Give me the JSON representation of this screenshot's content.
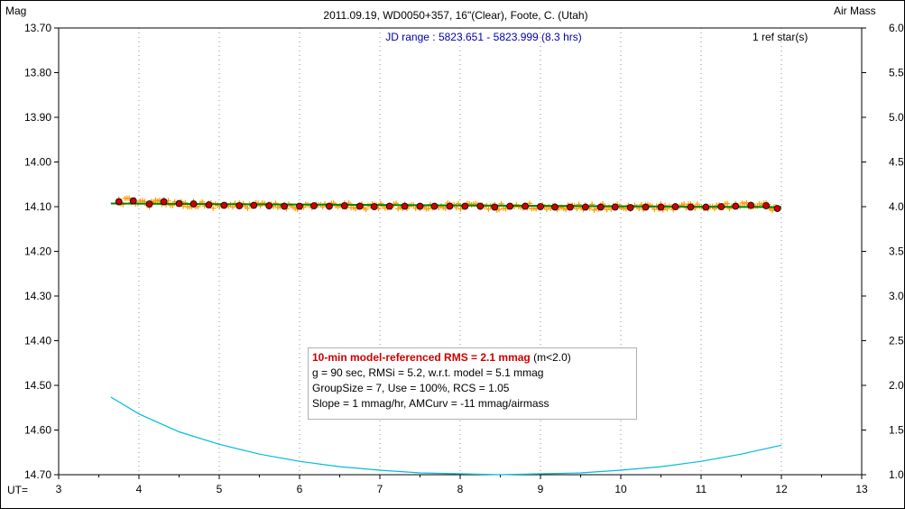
{
  "chart_data": {
    "type": "scatter",
    "title": "2011.09.19, WD0050+357, 16\"(Clear), Foote, C. (Utah)",
    "subtitle": "JD range : 5823.651 - 5823.999 (8.3 hrs)",
    "ref_stars": "1 ref star(s)",
    "ylabel": "Mag",
    "y2label": "Air Mass",
    "xlabel": "UT=",
    "xlim": [
      3,
      13
    ],
    "ylim": [
      14.7,
      13.7
    ],
    "y2lim": [
      1.0,
      6.0
    ],
    "y_inverted": true,
    "grid": false,
    "x_ticks": [
      "3",
      "4",
      "5",
      "6",
      "7",
      "8",
      "9",
      "10",
      "11",
      "12",
      "13"
    ],
    "y_ticks": [
      "13.70",
      "13.80",
      "13.90",
      "14.00",
      "14.10",
      "14.20",
      "14.30",
      "14.40",
      "14.50",
      "14.60",
      "14.70"
    ],
    "y2_ticks": [
      "6.0",
      "5.5",
      "5.0",
      "4.5",
      "4.0",
      "3.5",
      "3.0",
      "2.5",
      "2.0",
      "1.5",
      "1.0"
    ],
    "series": [
      {
        "kind": "binned",
        "color": "#cc0000",
        "x": [
          3.75,
          3.93,
          4.13,
          4.31,
          4.5,
          4.68,
          4.87,
          5.06,
          5.25,
          5.43,
          5.62,
          5.81,
          6.0,
          6.18,
          6.37,
          6.56,
          6.75,
          6.93,
          7.12,
          7.31,
          7.5,
          7.68,
          7.87,
          8.06,
          8.25,
          8.43,
          8.62,
          8.81,
          9.0,
          9.18,
          9.37,
          9.56,
          9.75,
          9.93,
          10.12,
          10.31,
          10.5,
          10.68,
          10.87,
          11.06,
          11.25,
          11.43,
          11.62,
          11.81,
          11.95
        ],
        "y": [
          14.089,
          14.087,
          14.094,
          14.089,
          14.093,
          14.094,
          14.096,
          14.097,
          14.098,
          14.097,
          14.098,
          14.099,
          14.099,
          14.098,
          14.099,
          14.098,
          14.099,
          14.1,
          14.099,
          14.099,
          14.099,
          14.099,
          14.099,
          14.099,
          14.099,
          14.101,
          14.099,
          14.099,
          14.1,
          14.101,
          14.101,
          14.101,
          14.101,
          14.101,
          14.102,
          14.101,
          14.101,
          14.1,
          14.101,
          14.101,
          14.1,
          14.099,
          14.097,
          14.098,
          14.104
        ]
      },
      {
        "kind": "model",
        "color": "#008800",
        "x": [
          3.65,
          12.0
        ],
        "y": [
          14.093,
          14.101
        ]
      },
      {
        "kind": "airmass",
        "axis": "right",
        "color": "#00bbdd",
        "x": [
          3.65,
          4.0,
          4.5,
          5.0,
          5.5,
          6.0,
          6.5,
          7.0,
          7.5,
          8.0,
          8.5,
          9.0,
          9.5,
          10.0,
          10.5,
          11.0,
          11.5,
          12.0
        ],
        "y": [
          1.87,
          1.68,
          1.48,
          1.34,
          1.23,
          1.15,
          1.09,
          1.05,
          1.02,
          1.01,
          1.0,
          1.01,
          1.02,
          1.05,
          1.09,
          1.15,
          1.23,
          1.33
        ]
      }
    ],
    "annotations": {
      "rms_line": "10-min model-referenced RMS = 2.1 mmag",
      "rms_suffix": "(m<2.0)",
      "line2": "g = 90 sec, RMSi = 5.2, w.r.t. model = 5.1 mmag",
      "line3": "GroupSize = 7, Use = 100%, RCS = 1.05",
      "line4": "Slope = 1 mmag/hr, AMCurv = -11 mmag/airmass"
    },
    "colors": {
      "raw_points": "#ff9900",
      "binned_points": "#cc0000",
      "model": "#008800",
      "airmass": "#00bbdd",
      "subtitle": "#0000aa"
    }
  }
}
